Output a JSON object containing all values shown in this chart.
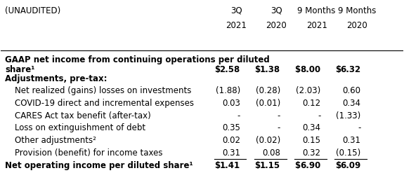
{
  "title_left": "(UNAUDITED)",
  "col_headers_line1": [
    "",
    "3Q",
    "3Q",
    "9 Months",
    "9 Months"
  ],
  "col_headers_line2": [
    "",
    "2021",
    "2020",
    "2021",
    "2020"
  ],
  "rows": [
    {
      "label": "GAAP net income from continuing operations per diluted\nshareⁿ¹⁾",
      "label_display": [
        "GAAP net income from continuing operations per diluted",
        "share¹"
      ],
      "values": [
        "$",
        "2.58",
        "$",
        "1.38",
        "$",
        "8.00",
        "$",
        "6.32"
      ],
      "bold": true,
      "indent": 0,
      "dollar_sign": true
    },
    {
      "label": "Adjustments, pre-tax:",
      "bold": true,
      "indent": 0,
      "header": true,
      "values": []
    },
    {
      "label": "Net realized (gains) losses on investments",
      "values": [
        "(1.88)",
        "(0.28)",
        "(2.03)",
        "0.60"
      ],
      "bold": false,
      "indent": 1
    },
    {
      "label": "COVID-19 direct and incremental expenses",
      "values": [
        "0.03",
        "(0.01)",
        "0.12",
        "0.34"
      ],
      "bold": false,
      "indent": 1
    },
    {
      "label": "CARES Act tax benefit (after-tax)",
      "values": [
        "-",
        "-",
        "-",
        "(1.33)"
      ],
      "bold": false,
      "indent": 1
    },
    {
      "label": "Loss on extinguishment of debt",
      "values": [
        "0.35",
        "-",
        "0.34",
        "-"
      ],
      "bold": false,
      "indent": 1
    },
    {
      "label": "Other adjustments²",
      "values": [
        "0.02",
        "(0.02)",
        "0.15",
        "0.31"
      ],
      "bold": false,
      "indent": 1
    },
    {
      "label": "Provision (benefit) for income taxes",
      "values": [
        "0.31",
        "0.08",
        "0.32",
        "(0.15)"
      ],
      "bold": false,
      "indent": 1,
      "bottom_line": true
    },
    {
      "label": "Net operating income per diluted share¹",
      "values": [
        "$",
        "1.41",
        "$",
        "1.15",
        "$",
        "6.90",
        "$",
        "6.09"
      ],
      "bold": true,
      "indent": 0,
      "dollar_sign": true,
      "bottom_double_line": true
    }
  ],
  "bg_color": "#ffffff",
  "text_color": "#000000",
  "line_color": "#000000",
  "font_size": 8.5,
  "header_font_size": 8.5
}
